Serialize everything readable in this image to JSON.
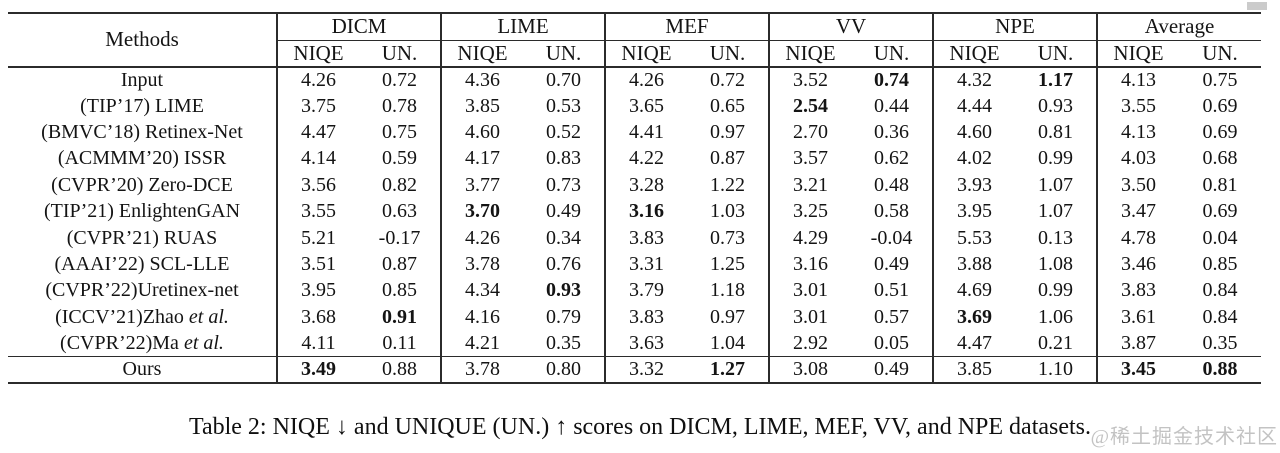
{
  "page": {
    "background": "#ffffff",
    "text_color": "#141414",
    "rule_color": "#2b2b2b"
  },
  "table": {
    "methods_header": "Methods",
    "groups": [
      {
        "label": "DICM"
      },
      {
        "label": "LIME"
      },
      {
        "label": "MEF"
      },
      {
        "label": "VV"
      },
      {
        "label": "NPE"
      },
      {
        "label": "Average"
      }
    ],
    "subheaders": [
      "NIQE",
      "UN."
    ],
    "rows": [
      {
        "label": "Input",
        "italic": "",
        "cells": [
          {
            "v": "4.26"
          },
          {
            "v": "0.72"
          },
          {
            "v": "4.36"
          },
          {
            "v": "0.70"
          },
          {
            "v": "4.26"
          },
          {
            "v": "0.72"
          },
          {
            "v": "3.52"
          },
          {
            "v": "0.74",
            "b": true
          },
          {
            "v": "4.32"
          },
          {
            "v": "1.17",
            "b": true
          },
          {
            "v": "4.13"
          },
          {
            "v": "0.75"
          }
        ]
      },
      {
        "label": "(TIP’17) LIME",
        "italic": "",
        "cells": [
          {
            "v": "3.75"
          },
          {
            "v": "0.78"
          },
          {
            "v": "3.85"
          },
          {
            "v": "0.53"
          },
          {
            "v": "3.65"
          },
          {
            "v": "0.65"
          },
          {
            "v": "2.54",
            "b": true
          },
          {
            "v": "0.44"
          },
          {
            "v": "4.44"
          },
          {
            "v": "0.93"
          },
          {
            "v": "3.55"
          },
          {
            "v": "0.69"
          }
        ]
      },
      {
        "label": "(BMVC’18) Retinex-Net",
        "italic": "",
        "cells": [
          {
            "v": "4.47"
          },
          {
            "v": "0.75"
          },
          {
            "v": "4.60"
          },
          {
            "v": "0.52"
          },
          {
            "v": "4.41"
          },
          {
            "v": "0.97"
          },
          {
            "v": "2.70"
          },
          {
            "v": "0.36"
          },
          {
            "v": "4.60"
          },
          {
            "v": "0.81"
          },
          {
            "v": "4.13"
          },
          {
            "v": "0.69"
          }
        ]
      },
      {
        "label": "(ACMMM’20) ISSR",
        "italic": "",
        "cells": [
          {
            "v": "4.14"
          },
          {
            "v": "0.59"
          },
          {
            "v": "4.17"
          },
          {
            "v": "0.83"
          },
          {
            "v": "4.22"
          },
          {
            "v": "0.87"
          },
          {
            "v": "3.57"
          },
          {
            "v": "0.62"
          },
          {
            "v": "4.02"
          },
          {
            "v": "0.99"
          },
          {
            "v": "4.03"
          },
          {
            "v": "0.68"
          }
        ]
      },
      {
        "label": "(CVPR’20) Zero-DCE",
        "italic": "",
        "cells": [
          {
            "v": "3.56"
          },
          {
            "v": "0.82"
          },
          {
            "v": "3.77"
          },
          {
            "v": "0.73"
          },
          {
            "v": "3.28"
          },
          {
            "v": "1.22"
          },
          {
            "v": "3.21"
          },
          {
            "v": "0.48"
          },
          {
            "v": "3.93"
          },
          {
            "v": "1.07"
          },
          {
            "v": "3.50"
          },
          {
            "v": "0.81"
          }
        ]
      },
      {
        "label": "(TIP’21) EnlightenGAN",
        "italic": "",
        "cells": [
          {
            "v": "3.55"
          },
          {
            "v": "0.63"
          },
          {
            "v": "3.70",
            "b": true
          },
          {
            "v": "0.49"
          },
          {
            "v": "3.16",
            "b": true
          },
          {
            "v": "1.03"
          },
          {
            "v": "3.25"
          },
          {
            "v": "0.58"
          },
          {
            "v": "3.95"
          },
          {
            "v": "1.07"
          },
          {
            "v": "3.47"
          },
          {
            "v": "0.69"
          }
        ]
      },
      {
        "label": "(CVPR’21) RUAS",
        "italic": "",
        "cells": [
          {
            "v": "5.21"
          },
          {
            "v": "-0.17"
          },
          {
            "v": "4.26"
          },
          {
            "v": "0.34"
          },
          {
            "v": "3.83"
          },
          {
            "v": "0.73"
          },
          {
            "v": "4.29"
          },
          {
            "v": "-0.04"
          },
          {
            "v": "5.53"
          },
          {
            "v": "0.13"
          },
          {
            "v": "4.78"
          },
          {
            "v": "0.04"
          }
        ]
      },
      {
        "label": "(AAAI’22) SCL-LLE",
        "italic": "",
        "cells": [
          {
            "v": "3.51"
          },
          {
            "v": "0.87"
          },
          {
            "v": "3.78"
          },
          {
            "v": "0.76"
          },
          {
            "v": "3.31"
          },
          {
            "v": "1.25"
          },
          {
            "v": "3.16"
          },
          {
            "v": "0.49"
          },
          {
            "v": "3.88"
          },
          {
            "v": "1.08"
          },
          {
            "v": "3.46"
          },
          {
            "v": "0.85"
          }
        ]
      },
      {
        "label": "(CVPR’22)Uretinex-net",
        "italic": "",
        "cells": [
          {
            "v": "3.95"
          },
          {
            "v": "0.85"
          },
          {
            "v": "4.34"
          },
          {
            "v": "0.93",
            "b": true
          },
          {
            "v": "3.79"
          },
          {
            "v": "1.18"
          },
          {
            "v": "3.01"
          },
          {
            "v": "0.51"
          },
          {
            "v": "4.69"
          },
          {
            "v": "0.99"
          },
          {
            "v": "3.83"
          },
          {
            "v": "0.84"
          }
        ]
      },
      {
        "label": "(ICCV’21)Zhao ",
        "italic": "et al.",
        "cells": [
          {
            "v": "3.68"
          },
          {
            "v": "0.91",
            "b": true
          },
          {
            "v": "4.16"
          },
          {
            "v": "0.79"
          },
          {
            "v": "3.83"
          },
          {
            "v": "0.97"
          },
          {
            "v": "3.01"
          },
          {
            "v": "0.57"
          },
          {
            "v": "3.69",
            "b": true
          },
          {
            "v": "1.06"
          },
          {
            "v": "3.61"
          },
          {
            "v": "0.84"
          }
        ]
      },
      {
        "label": "(CVPR’22)Ma ",
        "italic": "et al.",
        "cells": [
          {
            "v": "4.11"
          },
          {
            "v": "0.11"
          },
          {
            "v": "4.21"
          },
          {
            "v": "0.35"
          },
          {
            "v": "3.63"
          },
          {
            "v": "1.04"
          },
          {
            "v": "2.92"
          },
          {
            "v": "0.05"
          },
          {
            "v": "4.47"
          },
          {
            "v": "0.21"
          },
          {
            "v": "3.87"
          },
          {
            "v": "0.35"
          }
        ]
      },
      {
        "label": "Ours",
        "italic": "",
        "ours": true,
        "cells": [
          {
            "v": "3.49",
            "b": true
          },
          {
            "v": "0.88"
          },
          {
            "v": "3.78"
          },
          {
            "v": "0.80"
          },
          {
            "v": "3.32"
          },
          {
            "v": "1.27",
            "b": true
          },
          {
            "v": "3.08"
          },
          {
            "v": "0.49"
          },
          {
            "v": "3.85"
          },
          {
            "v": "1.10"
          },
          {
            "v": "3.45",
            "b": true
          },
          {
            "v": "0.88",
            "b": true
          }
        ]
      }
    ]
  },
  "caption": "Table 2: NIQE ↓ and UNIQUE (UN.) ↑ scores on DICM, LIME, MEF, VV, and NPE datasets.",
  "watermark": "@稀土掘金技术社区"
}
